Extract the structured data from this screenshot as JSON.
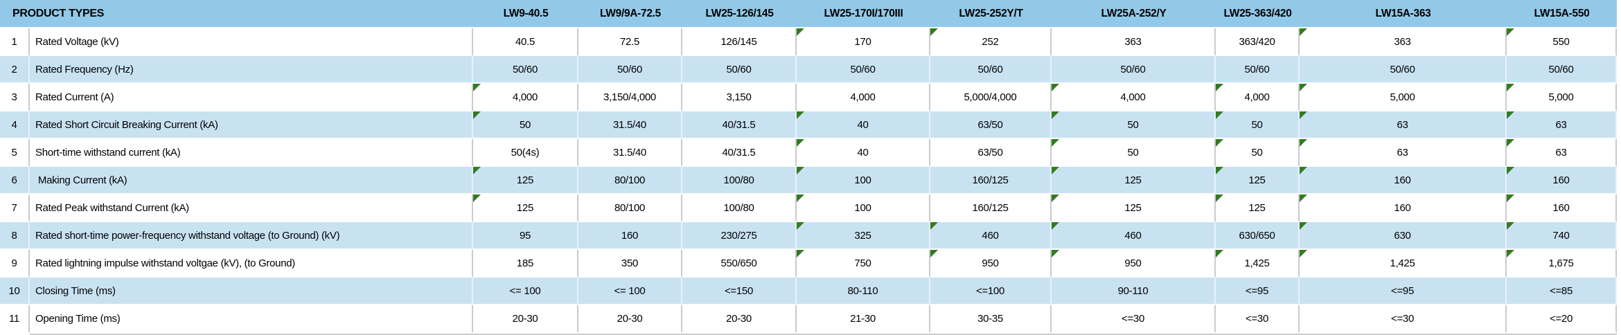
{
  "colors": {
    "header_bg": "#93C9E8",
    "band_bg": "#C9E2F2",
    "grid_gray": "#CBCBCB",
    "flag_green": "#337B22"
  },
  "table": {
    "corner_header": "PRODUCT TYPES",
    "columns": [
      "LW9-40.5",
      "LW9/9A-72.5",
      "LW25-126/145",
      "LW25-170I/170III",
      "LW25-252Y/T",
      "LW25A-252/Y",
      "LW25-363/420",
      "LW15A-363",
      "LW15A-550"
    ],
    "flag_icon_meaning": "green-corner-flag-icon",
    "rows": [
      {
        "num": "1",
        "label": "Rated Voltage (kV)",
        "values": [
          "40.5",
          "72.5",
          "126/145",
          "170",
          "252",
          "363",
          "363/420",
          "363",
          "550"
        ],
        "flags": [
          0,
          0,
          0,
          1,
          1,
          0,
          0,
          1,
          1
        ]
      },
      {
        "num": "2",
        "label": "Rated Frequency (Hz)",
        "values": [
          "50/60",
          "50/60",
          "50/60",
          "50/60",
          "50/60",
          "50/60",
          "50/60",
          "50/60",
          "50/60"
        ],
        "flags": [
          0,
          0,
          0,
          0,
          0,
          0,
          0,
          0,
          0
        ]
      },
      {
        "num": "3",
        "label": "Rated Current (A)",
        "values": [
          "4,000",
          "3,150/4,000",
          "3,150",
          "4,000",
          "5,000/4,000",
          "4,000",
          "4,000",
          "5,000",
          "5,000"
        ],
        "flags": [
          1,
          0,
          0,
          0,
          0,
          1,
          1,
          1,
          1
        ]
      },
      {
        "num": "4",
        "label": "Rated Short Circuit Breaking Current (kA)",
        "values": [
          "50",
          "31.5/40",
          "40/31.5",
          "40",
          "63/50",
          "50",
          "50",
          "63",
          "63"
        ],
        "flags": [
          1,
          0,
          0,
          1,
          0,
          1,
          1,
          1,
          1
        ]
      },
      {
        "num": "5",
        "label": "Short-time withstand current (kA)",
        "values": [
          "50(4s)",
          "31.5/40",
          "40/31.5",
          "40",
          "63/50",
          "50",
          "50",
          "63",
          "63"
        ],
        "flags": [
          0,
          0,
          0,
          1,
          0,
          1,
          1,
          1,
          1
        ]
      },
      {
        "num": "6",
        "label": " Making Current (kA)",
        "values": [
          "125",
          "80/100",
          "100/80",
          "100",
          "160/125",
          "125",
          "125",
          "160",
          "160"
        ],
        "flags": [
          1,
          0,
          0,
          1,
          0,
          1,
          1,
          1,
          1
        ]
      },
      {
        "num": "7",
        "label": "Rated Peak withstand Current (kA)",
        "values": [
          "125",
          "80/100",
          "100/80",
          "100",
          "160/125",
          "125",
          "125",
          "160",
          "160"
        ],
        "flags": [
          1,
          0,
          0,
          1,
          0,
          1,
          1,
          1,
          1
        ]
      },
      {
        "num": "8",
        "label": "Rated short-time power-frequency withstand voltage (to Ground) (kV)",
        "values": [
          "95",
          "160",
          "230/275",
          "325",
          "460",
          "460",
          "630/650",
          "630",
          "740"
        ],
        "flags": [
          0,
          0,
          0,
          1,
          1,
          1,
          0,
          1,
          1
        ]
      },
      {
        "num": "9",
        "label": "Rated lightning impulse withstand voltgae (kV), (to Ground)",
        "values": [
          "185",
          "350",
          "550/650",
          "750",
          "950",
          "950",
          "1,425",
          "1,425",
          "1,675"
        ],
        "flags": [
          0,
          0,
          0,
          1,
          1,
          1,
          1,
          1,
          1
        ]
      },
      {
        "num": "10",
        "label": "Closing Time (ms)",
        "values": [
          "<= 100",
          "<= 100",
          "<=150",
          "80-110",
          "<=100",
          "90-110",
          "<=95",
          "<=95",
          "<=85"
        ],
        "flags": [
          0,
          0,
          0,
          0,
          0,
          0,
          0,
          0,
          0
        ]
      },
      {
        "num": "11",
        "label": "Opening Time (ms)",
        "values": [
          "20-30",
          "20-30",
          "20-30",
          "21-30",
          "30-35",
          "<=30",
          "<=30",
          "<=30",
          "<=20"
        ],
        "flags": [
          0,
          0,
          0,
          0,
          0,
          0,
          0,
          0,
          0
        ]
      }
    ]
  }
}
